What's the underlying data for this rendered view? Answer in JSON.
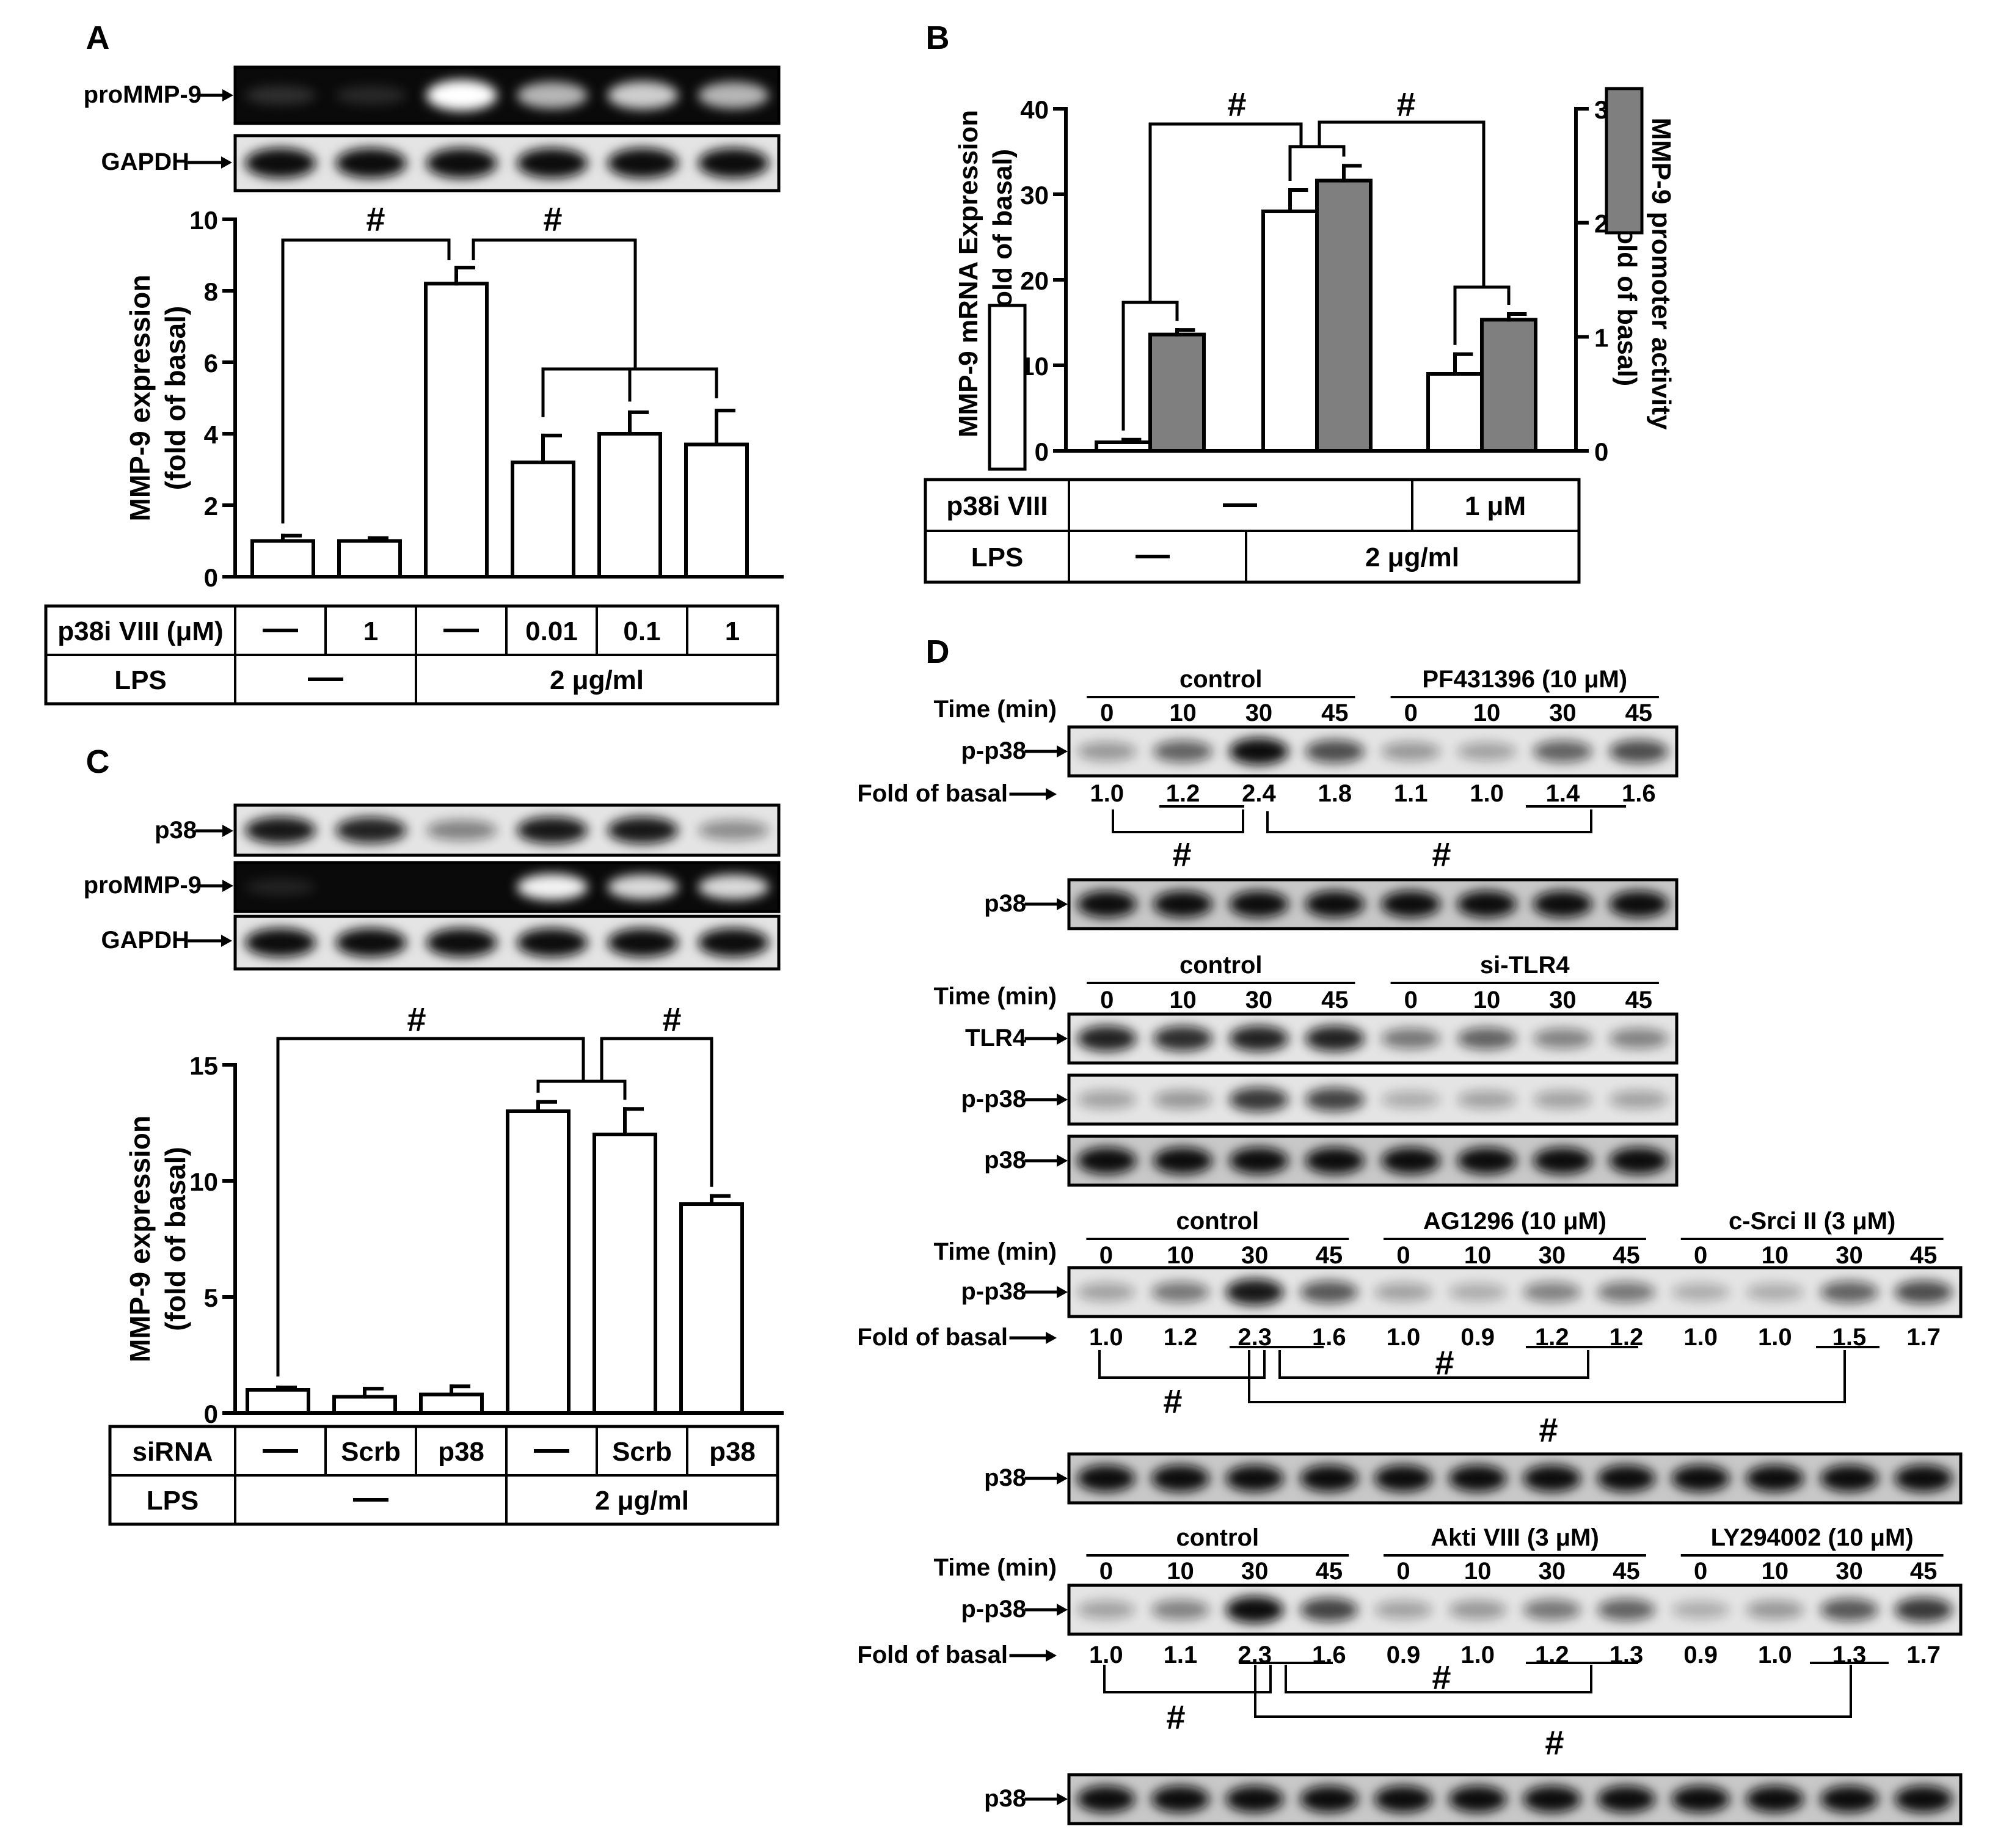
{
  "panelA": {
    "letter": "A",
    "blots": [
      {
        "label": "proMMP-9",
        "kind": "dark"
      },
      {
        "label": "GAPDH",
        "kind": "light"
      }
    ],
    "sig": "#",
    "chart_data": {
      "type": "bar",
      "ylabel": [
        "MMP-9  expression",
        "(fold of basal)"
      ],
      "ylim": [
        0,
        10
      ],
      "yticks": [
        0,
        2,
        4,
        6,
        8,
        10
      ],
      "values": [
        1.0,
        1.0,
        8.2,
        3.2,
        4.0,
        3.7
      ],
      "errors": [
        0.15,
        0.08,
        0.45,
        0.75,
        0.6,
        0.95
      ]
    },
    "table": {
      "rows": [
        {
          "label": "p38i VIII (μM)",
          "cells": [
            {
              "t": "—",
              "span": 1
            },
            {
              "t": "1",
              "span": 1
            },
            {
              "t": "—",
              "span": 1
            },
            {
              "t": "0.01",
              "span": 1
            },
            {
              "t": "0.1",
              "span": 1
            },
            {
              "t": "1",
              "span": 1
            }
          ]
        },
        {
          "label": "LPS",
          "cells": [
            {
              "t": "—",
              "span": 2
            },
            {
              "t": "2 μg/ml",
              "span": 4
            }
          ]
        }
      ]
    }
  },
  "panelB": {
    "letter": "B",
    "sig": "#",
    "chart_data": {
      "type": "bar",
      "ylabel_left": [
        "MMP-9 mRNA  Expression",
        "(fold of basal)"
      ],
      "ylabel_right": [
        "MMP-9 promoter activity",
        "(fold of basal)"
      ],
      "ylim_left": [
        0,
        40
      ],
      "yticks_left": [
        0,
        10,
        20,
        30,
        40
      ],
      "ylim_right": [
        0,
        3
      ],
      "yticks_right": [
        0,
        1,
        2,
        3
      ],
      "series": [
        {
          "axis": "left",
          "color": "#ffffff",
          "values": [
            1.0,
            28.0,
            9.0
          ],
          "errors": [
            0.3,
            2.5,
            2.3
          ]
        },
        {
          "axis": "right",
          "color": "#7f7f7f",
          "values": [
            1.02,
            2.37,
            1.15
          ],
          "errors": [
            0.04,
            0.13,
            0.05
          ]
        }
      ]
    },
    "table": {
      "rows": [
        {
          "label": "p38i VIII",
          "cells": [
            {
              "t": "—",
              "span": 2
            },
            {
              "t": "1 μM",
              "span": 1
            }
          ]
        },
        {
          "label": "LPS",
          "cells": [
            {
              "t": "—",
              "span": 1
            },
            {
              "t": "2 μg/ml",
              "span": 2
            }
          ]
        }
      ]
    }
  },
  "panelC": {
    "letter": "C",
    "blots": [
      {
        "label": "p38",
        "kind": "light"
      },
      {
        "label": "proMMP-9",
        "kind": "dark"
      },
      {
        "label": "GAPDH",
        "kind": "light"
      }
    ],
    "sig": "#",
    "chart_data": {
      "type": "bar",
      "ylabel": [
        "MMP-9  expression",
        "(fold of basal)"
      ],
      "ylim": [
        0,
        15
      ],
      "yticks": [
        0,
        5,
        10,
        15
      ],
      "values": [
        1.0,
        0.7,
        0.8,
        13.0,
        12.0,
        9.0
      ],
      "errors": [
        0.1,
        0.35,
        0.35,
        0.4,
        1.1,
        0.35
      ]
    },
    "table": {
      "rows": [
        {
          "label": "siRNA",
          "cells": [
            {
              "t": "—",
              "span": 1
            },
            {
              "t": "Scrb",
              "span": 1
            },
            {
              "t": "p38",
              "span": 1
            },
            {
              "t": "—",
              "span": 1
            },
            {
              "t": "Scrb",
              "span": 1
            },
            {
              "t": "p38",
              "span": 1
            }
          ]
        },
        {
          "label": "LPS",
          "cells": [
            {
              "t": "—",
              "span": 3
            },
            {
              "t": "2 μg/ml",
              "span": 3
            }
          ]
        }
      ]
    }
  },
  "panelD": {
    "letter": "D",
    "time_label": "Time (min)",
    "fold_label": "Fold of basal",
    "sig": "#",
    "times": [
      "0",
      "10",
      "30",
      "45"
    ],
    "sections": [
      {
        "groups": [
          "control",
          "PF431396 (10 μM)"
        ],
        "rows": [
          {
            "label": "p-p38",
            "kind": "pp38"
          },
          {
            "fold": [
              "1.0",
              "1.2",
              "2.4",
              "1.8",
              "1.1",
              "1.0",
              "1.4",
              "1.6"
            ]
          },
          {
            "label": "p38",
            "kind": "total"
          }
        ]
      },
      {
        "groups": [
          "control",
          "si-TLR4"
        ],
        "rows": [
          {
            "label": "TLR4",
            "kind": "tlr4"
          },
          {
            "label": "p-p38",
            "kind": "pp38b"
          },
          {
            "label": "p38",
            "kind": "total"
          }
        ]
      },
      {
        "groups": [
          "control",
          "AG1296 (10 μM)",
          "c-Srci II (3 μM)"
        ],
        "rows": [
          {
            "label": "p-p38",
            "kind": "pp38"
          },
          {
            "fold": [
              "1.0",
              "1.2",
              "2.3",
              "1.6",
              "1.0",
              "0.9",
              "1.2",
              "1.2",
              "1.0",
              "1.0",
              "1.5",
              "1.7"
            ]
          },
          {
            "label": "p38",
            "kind": "total"
          }
        ]
      },
      {
        "groups": [
          "control",
          "Akti VIII (3 μM)",
          "LY294002 (10 μM)"
        ],
        "rows": [
          {
            "label": "p-p38",
            "kind": "pp38"
          },
          {
            "fold": [
              "1.0",
              "1.1",
              "2.3",
              "1.6",
              "0.9",
              "1.0",
              "1.2",
              "1.3",
              "0.9",
              "1.0",
              "1.3",
              "1.7"
            ]
          },
          {
            "label": "p38",
            "kind": "total"
          }
        ]
      }
    ]
  }
}
